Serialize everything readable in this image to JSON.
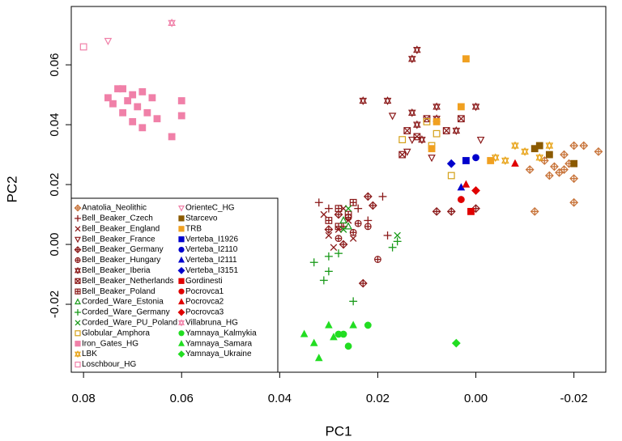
{
  "chart_data": {
    "type": "scatter",
    "x_label": "PC1",
    "y_label": "PC2",
    "xlim": [
      0.0825,
      -0.0265
    ],
    "ylim": [
      -0.0427,
      0.0795
    ],
    "xticks": [
      0.08,
      0.06,
      0.04,
      0.02,
      {
        "value": 0,
        "label": "0.00"
      },
      -0.02
    ],
    "yticks": [
      -0.02,
      {
        "value": 0,
        "label": "0.00"
      },
      0.02,
      0.04,
      0.06
    ],
    "legend": "bottom-left",
    "series": [
      {
        "name": "Anatolia_Neolithic",
        "color": "#c8743a",
        "marker": "diamond-plus",
        "x": [
          -0.02,
          -0.022,
          -0.025,
          -0.018,
          -0.02,
          -0.02,
          -0.012,
          -0.016,
          -0.017,
          -0.019,
          -0.014,
          -0.018,
          -0.011,
          -0.015
        ],
        "y": [
          0.033,
          0.033,
          0.031,
          0.025,
          0.022,
          0.014,
          0.011,
          0.026,
          0.024,
          0.027,
          0.028,
          0.03,
          0.025,
          0.023
        ]
      },
      {
        "name": "Bell_Beaker_Czech",
        "color": "#8b1a1a",
        "marker": "plus",
        "x": [
          0.032,
          0.03,
          0.024,
          0.018,
          0.022,
          0.019,
          0.027
        ],
        "y": [
          0.014,
          0.012,
          0.012,
          0.003,
          0.008,
          0.016,
          0.006
        ]
      },
      {
        "name": "Bell_Beaker_England",
        "color": "#8b1a1a",
        "marker": "cross",
        "x": [
          0.031,
          0.028,
          0.026,
          0.03,
          0.025,
          0.029,
          0.027
        ],
        "y": [
          0.01,
          0.005,
          0.008,
          0.003,
          0.002,
          -0.001,
          0.012
        ]
      },
      {
        "name": "Bell_Beaker_France",
        "color": "#8b1a1a",
        "marker": "triangle-down-open",
        "x": [
          0.009,
          0.013,
          0.017,
          -0.001,
          0.014
        ],
        "y": [
          0.029,
          0.035,
          0.043,
          0.035,
          0.031
        ]
      },
      {
        "name": "Bell_Beaker_Germany",
        "color": "#8b1a1a",
        "marker": "diamond-plus",
        "x": [
          0.005,
          0.008,
          0.0,
          0.022,
          0.028,
          0.021,
          0.023,
          0.027,
          0.03
        ],
        "y": [
          0.011,
          0.011,
          0.012,
          0.016,
          0.01,
          0.013,
          -0.013,
          0.0,
          0.005
        ]
      },
      {
        "name": "Bell_Beaker_Hungary",
        "color": "#8b1a1a",
        "marker": "circle-plus",
        "x": [
          0.026,
          0.028,
          0.024,
          0.02,
          0.022,
          0.025
        ],
        "y": [
          0.009,
          0.002,
          0.007,
          -0.005,
          0.006,
          0.004
        ]
      },
      {
        "name": "Bell_Beaker_Iberia",
        "color": "#8b1a1a",
        "marker": "star6",
        "x": [
          0.012,
          0.013,
          0.018,
          0.008,
          0.013,
          0.004,
          0.008,
          0.012,
          0.023,
          0.0,
          0.011
        ],
        "y": [
          0.065,
          0.062,
          0.048,
          0.046,
          0.044,
          0.038,
          0.042,
          0.04,
          0.048,
          0.046,
          0.035
        ]
      },
      {
        "name": "Bell_Beaker_Netherlands",
        "color": "#8b1a1a",
        "marker": "square-cross",
        "x": [
          0.01,
          0.003,
          0.012,
          0.006,
          0.015,
          0.014
        ],
        "y": [
          0.042,
          0.042,
          0.036,
          0.038,
          0.03,
          0.038
        ]
      },
      {
        "name": "Bell_Beaker_Poland",
        "color": "#8b1a1a",
        "marker": "square-plus",
        "x": [
          0.028,
          0.026,
          0.03,
          0.025,
          0.028
        ],
        "y": [
          0.012,
          0.01,
          0.008,
          0.014,
          0.006
        ]
      },
      {
        "name": "Corded_Ware_Estonia",
        "color": "#1a9a1a",
        "marker": "triangle-open",
        "x": [
          0.027,
          0.026
        ],
        "y": [
          0.008,
          0.006
        ]
      },
      {
        "name": "Corded_Ware_Germany",
        "color": "#1a9a1a",
        "marker": "plus",
        "x": [
          0.033,
          0.03,
          0.031,
          0.028,
          0.025,
          0.017,
          0.016,
          0.03
        ],
        "y": [
          -0.006,
          -0.009,
          -0.012,
          -0.003,
          -0.019,
          -0.001,
          0.001,
          -0.004
        ]
      },
      {
        "name": "Corded_Ware_PU_Poland",
        "color": "#1a9a1a",
        "marker": "cross",
        "x": [
          0.026,
          0.027,
          0.016
        ],
        "y": [
          0.012,
          0.005,
          0.003
        ]
      },
      {
        "name": "Globular_Amphora",
        "color": "#d4a017",
        "marker": "square-open",
        "x": [
          0.015,
          0.008,
          0.005,
          0.01,
          0.009
        ],
        "y": [
          0.035,
          0.037,
          0.023,
          0.041,
          0.033
        ]
      },
      {
        "name": "Iron_Gates_HG",
        "color": "#f080a8",
        "marker": "square",
        "x": [
          0.073,
          0.072,
          0.07,
          0.068,
          0.066,
          0.071,
          0.069,
          0.067,
          0.072,
          0.065,
          0.074,
          0.06,
          0.06,
          0.068,
          0.062,
          0.07,
          0.075
        ],
        "y": [
          0.052,
          0.052,
          0.05,
          0.051,
          0.049,
          0.048,
          0.046,
          0.044,
          0.044,
          0.042,
          0.047,
          0.048,
          0.043,
          0.039,
          0.036,
          0.041,
          0.049
        ]
      },
      {
        "name": "LBK",
        "color": "#e8a317",
        "marker": "star6",
        "x": [
          -0.008,
          -0.01,
          -0.013,
          -0.015,
          -0.006,
          -0.004
        ],
        "y": [
          0.033,
          0.031,
          0.029,
          0.033,
          0.028,
          0.029
        ]
      },
      {
        "name": "Loschbour_HG",
        "color": "#f080a8",
        "marker": "square-open",
        "x": [
          0.08
        ],
        "y": [
          0.066
        ]
      },
      {
        "name": "OrienteC_HG",
        "color": "#f080a8",
        "marker": "triangle-down-open",
        "x": [
          0.075
        ],
        "y": [
          0.068
        ]
      },
      {
        "name": "Starcevo",
        "color": "#8b5a00",
        "marker": "square",
        "x": [
          -0.013,
          -0.012,
          -0.02,
          -0.015
        ],
        "y": [
          0.033,
          0.032,
          0.027,
          0.03
        ]
      },
      {
        "name": "TRB",
        "color": "#f0a020",
        "marker": "square",
        "x": [
          0.002,
          0.003,
          0.009,
          -0.003,
          0.008
        ],
        "y": [
          0.062,
          0.046,
          0.032,
          0.028,
          0.041
        ]
      },
      {
        "name": "Verteba_I1926",
        "color": "#0000cc",
        "marker": "square",
        "x": [
          0.002
        ],
        "y": [
          0.028
        ]
      },
      {
        "name": "Verteba_I2110",
        "color": "#0000cc",
        "marker": "circle",
        "x": [
          0.0
        ],
        "y": [
          0.029
        ]
      },
      {
        "name": "Verteba_I2111",
        "color": "#0000cc",
        "marker": "triangle",
        "x": [
          0.003
        ],
        "y": [
          0.019
        ]
      },
      {
        "name": "Verteba_I3151",
        "color": "#0000cc",
        "marker": "diamond",
        "x": [
          0.005
        ],
        "y": [
          0.027
        ]
      },
      {
        "name": "Gordinesti",
        "color": "#e00000",
        "marker": "square",
        "x": [
          0.001
        ],
        "y": [
          0.011
        ]
      },
      {
        "name": "Pocrovca1",
        "color": "#e00000",
        "marker": "circle",
        "x": [
          0.003
        ],
        "y": [
          0.015
        ]
      },
      {
        "name": "Pocrovca2",
        "color": "#e00000",
        "marker": "triangle",
        "x": [
          -0.008,
          0.002
        ],
        "y": [
          0.027,
          0.02
        ]
      },
      {
        "name": "Pocrovca3",
        "color": "#e00000",
        "marker": "diamond",
        "x": [
          0.0
        ],
        "y": [
          0.018
        ]
      },
      {
        "name": "Villabruna_HG",
        "color": "#f080a8",
        "marker": "star6",
        "x": [
          0.062
        ],
        "y": [
          0.074
        ]
      },
      {
        "name": "Yamnaya_Kalmykia",
        "color": "#22dd22",
        "marker": "circle",
        "x": [
          0.027,
          0.022,
          0.026,
          0.028
        ],
        "y": [
          -0.03,
          -0.027,
          -0.034,
          -0.03
        ]
      },
      {
        "name": "Yamnaya_Samara",
        "color": "#22dd22",
        "marker": "triangle",
        "x": [
          0.035,
          0.033,
          0.032,
          0.03,
          0.029,
          0.025
        ],
        "y": [
          -0.03,
          -0.033,
          -0.038,
          -0.027,
          -0.031,
          -0.027
        ]
      },
      {
        "name": "Yamnaya_Ukraine",
        "color": "#22dd22",
        "marker": "diamond",
        "x": [
          0.004
        ],
        "y": [
          -0.033
        ]
      }
    ]
  }
}
